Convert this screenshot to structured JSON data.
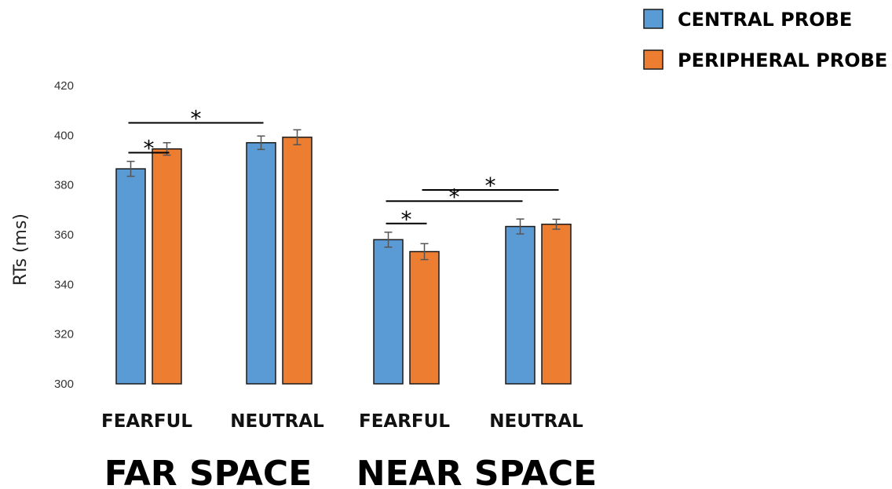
{
  "chart_data": {
    "type": "bar",
    "ylabel": "RTs (ms)",
    "ylim": [
      300,
      420
    ],
    "yticks": [
      300,
      320,
      340,
      360,
      380,
      400,
      420
    ],
    "groups": [
      "FAR SPACE",
      "NEAR SPACE"
    ],
    "categories": [
      "FEARFUL",
      "NEUTRAL",
      "FEARFUL",
      "NEUTRAL"
    ],
    "category_group": [
      0,
      0,
      1,
      1
    ],
    "series": [
      {
        "name": "CENTRAL PROBE",
        "color": "#5B9BD5",
        "values": [
          386.5,
          397,
          358,
          363.3
        ],
        "errors": [
          3,
          2.7,
          3,
          3
        ]
      },
      {
        "name": "PERIPHERAL PROBE",
        "color": "#ED7D31",
        "values": [
          394.5,
          399.2,
          353.2,
          364.2
        ],
        "errors": [
          2.5,
          3,
          3.2,
          2
        ]
      }
    ],
    "significance": [
      {
        "from": [
          0,
          0
        ],
        "to": [
          0,
          1
        ],
        "y": 393,
        "label": "*"
      },
      {
        "from": [
          0,
          0
        ],
        "to": [
          1,
          0
        ],
        "y": 405,
        "label": "*"
      },
      {
        "from": [
          2,
          0
        ],
        "to": [
          2,
          1
        ],
        "y": 364.5,
        "label": "*"
      },
      {
        "from": [
          2,
          0
        ],
        "to": [
          3,
          0
        ],
        "y": 373.5,
        "label": "*"
      },
      {
        "from": [
          2,
          1
        ],
        "to": [
          3,
          1
        ],
        "y": 378,
        "label": "*"
      }
    ],
    "legend_position": "top-right",
    "grid": false
  }
}
